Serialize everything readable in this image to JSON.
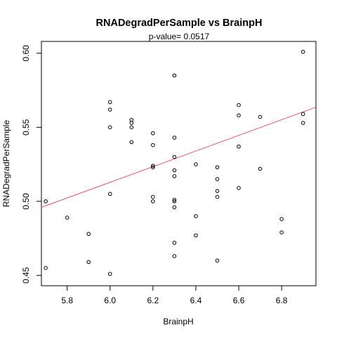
{
  "chart_data": {
    "type": "scatter",
    "title": "RNADegradPerSample  vs  BrainpH",
    "subtitle": "p-value= 0.0517",
    "xlabel": "BrainpH",
    "ylabel": "RNADegradPerSample",
    "xlim": [
      5.68,
      6.96
    ],
    "ylim": [
      0.443,
      0.608
    ],
    "xticks": [
      "5.8",
      "6.0",
      "6.2",
      "6.4",
      "6.6",
      "6.8"
    ],
    "yticks": [
      "0.45",
      "0.50",
      "0.55",
      "0.60"
    ],
    "fit_line": {
      "intercept": 0.1958,
      "slope": 0.05284,
      "color": "#DF536B"
    },
    "points": [
      {
        "x": 5.7,
        "y": 0.455
      },
      {
        "x": 5.7,
        "y": 0.5
      },
      {
        "x": 5.8,
        "y": 0.489
      },
      {
        "x": 5.9,
        "y": 0.478
      },
      {
        "x": 5.9,
        "y": 0.459
      },
      {
        "x": 6.0,
        "y": 0.567
      },
      {
        "x": 6.0,
        "y": 0.562
      },
      {
        "x": 6.0,
        "y": 0.55
      },
      {
        "x": 6.0,
        "y": 0.505
      },
      {
        "x": 6.0,
        "y": 0.451
      },
      {
        "x": 6.1,
        "y": 0.555
      },
      {
        "x": 6.1,
        "y": 0.553
      },
      {
        "x": 6.1,
        "y": 0.55
      },
      {
        "x": 6.1,
        "y": 0.54
      },
      {
        "x": 6.2,
        "y": 0.546
      },
      {
        "x": 6.2,
        "y": 0.538
      },
      {
        "x": 6.2,
        "y": 0.524
      },
      {
        "x": 6.2,
        "y": 0.523
      },
      {
        "x": 6.2,
        "y": 0.503
      },
      {
        "x": 6.2,
        "y": 0.5
      },
      {
        "x": 6.3,
        "y": 0.585
      },
      {
        "x": 6.3,
        "y": 0.543
      },
      {
        "x": 6.3,
        "y": 0.53
      },
      {
        "x": 6.3,
        "y": 0.521
      },
      {
        "x": 6.3,
        "y": 0.517
      },
      {
        "x": 6.3,
        "y": 0.501
      },
      {
        "x": 6.3,
        "y": 0.5
      },
      {
        "x": 6.3,
        "y": 0.496
      },
      {
        "x": 6.3,
        "y": 0.472
      },
      {
        "x": 6.3,
        "y": 0.463
      },
      {
        "x": 6.4,
        "y": 0.525
      },
      {
        "x": 6.4,
        "y": 0.49
      },
      {
        "x": 6.4,
        "y": 0.477
      },
      {
        "x": 6.5,
        "y": 0.523
      },
      {
        "x": 6.5,
        "y": 0.515
      },
      {
        "x": 6.5,
        "y": 0.507
      },
      {
        "x": 6.5,
        "y": 0.503
      },
      {
        "x": 6.5,
        "y": 0.46
      },
      {
        "x": 6.6,
        "y": 0.565
      },
      {
        "x": 6.6,
        "y": 0.558
      },
      {
        "x": 6.6,
        "y": 0.537
      },
      {
        "x": 6.6,
        "y": 0.509
      },
      {
        "x": 6.7,
        "y": 0.557
      },
      {
        "x": 6.7,
        "y": 0.522
      },
      {
        "x": 6.8,
        "y": 0.488
      },
      {
        "x": 6.8,
        "y": 0.479
      },
      {
        "x": 6.9,
        "y": 0.601
      },
      {
        "x": 6.9,
        "y": 0.559
      },
      {
        "x": 6.9,
        "y": 0.553
      }
    ],
    "grid": false,
    "legend": "none"
  }
}
